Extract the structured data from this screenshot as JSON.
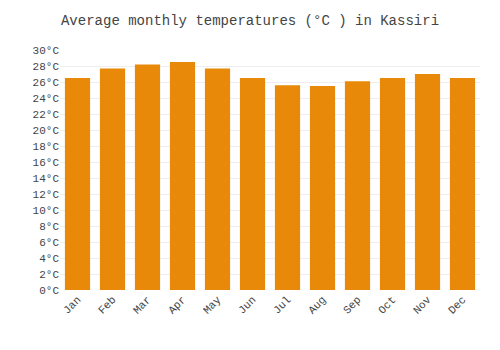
{
  "chart_data": {
    "type": "bar",
    "title": "Average monthly temperatures (°C ) in Kassiri",
    "categories": [
      "Jan",
      "Feb",
      "Mar",
      "Apr",
      "May",
      "Jun",
      "Jul",
      "Aug",
      "Sep",
      "Oct",
      "Nov",
      "Dec"
    ],
    "values": [
      26.5,
      27.7,
      28.2,
      28.5,
      27.7,
      26.5,
      25.6,
      25.5,
      26.1,
      26.5,
      27.0,
      26.5
    ],
    "color": "#E8890A",
    "ylim": [
      0,
      30
    ],
    "yticks": [
      {
        "value": 0,
        "label": "0°C"
      },
      {
        "value": 2,
        "label": "2°C"
      },
      {
        "value": 4,
        "label": "4°C"
      },
      {
        "value": 6,
        "label": "6°C"
      },
      {
        "value": 8,
        "label": "8°C"
      },
      {
        "value": 10,
        "label": "10°C"
      },
      {
        "value": 12,
        "label": "12°C"
      },
      {
        "value": 14,
        "label": "14°C"
      },
      {
        "value": 16,
        "label": "16°C"
      },
      {
        "value": 18,
        "label": "18°C"
      },
      {
        "value": 20,
        "label": "20°C"
      },
      {
        "value": 22,
        "label": "22°C"
      },
      {
        "value": 24,
        "label": "24°C"
      },
      {
        "value": 26,
        "label": "26°C"
      },
      {
        "value": 28,
        "label": "28°C"
      },
      {
        "value": 30,
        "label": "30°C"
      }
    ],
    "grid": true
  }
}
